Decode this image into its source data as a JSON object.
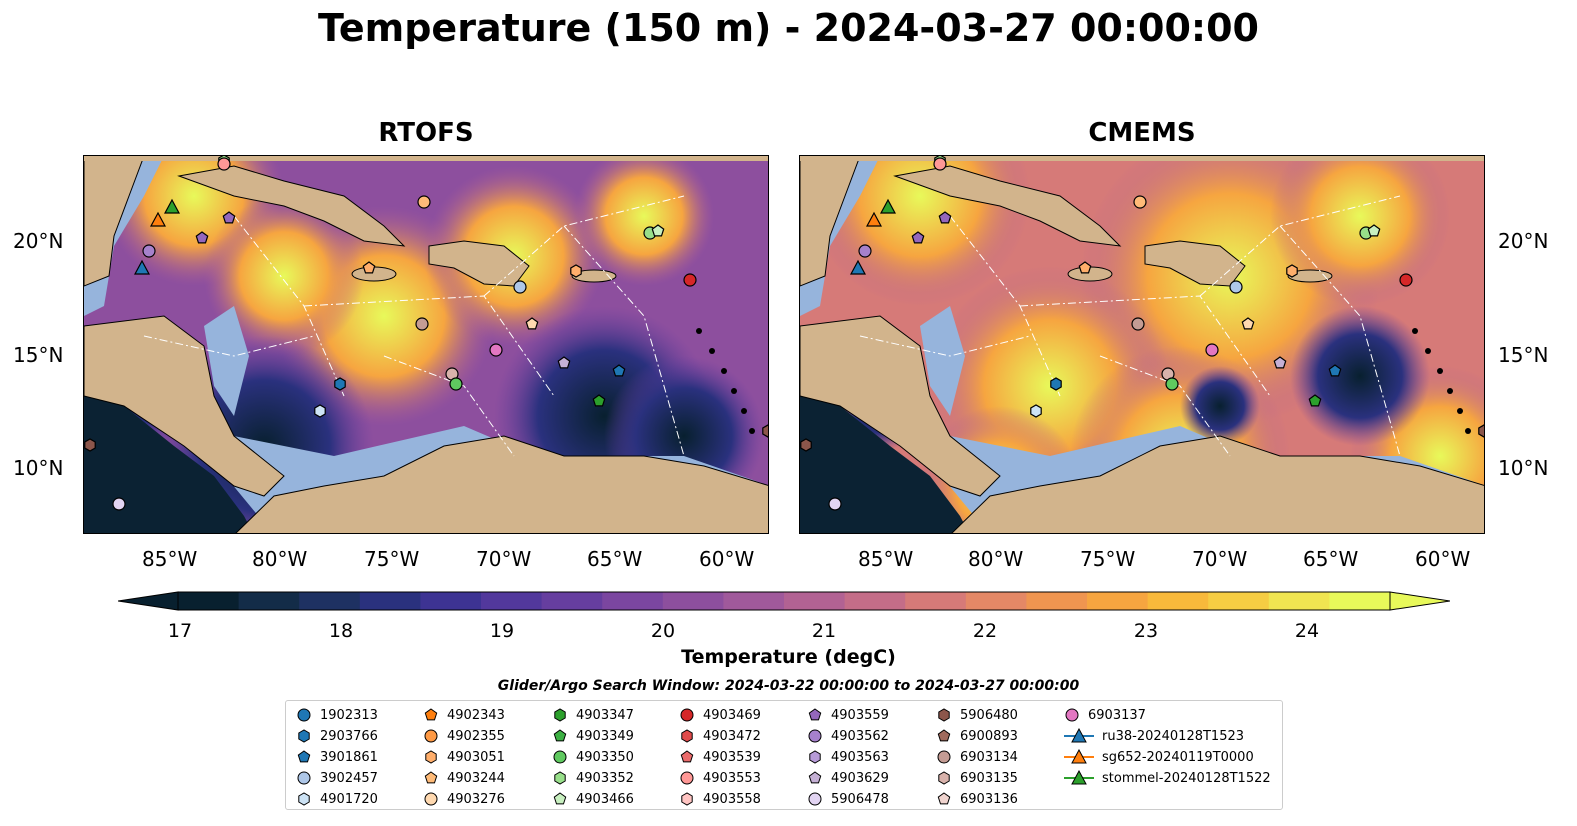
{
  "title": "Temperature (150 m) - 2024-03-27 00:00:00",
  "panels": [
    {
      "name": "RTOFS"
    },
    {
      "name": "CMEMS"
    }
  ],
  "lon_ticks": [
    "85°W",
    "80°W",
    "75°W",
    "70°W",
    "65°W",
    "60°W"
  ],
  "lat_ticks": [
    "20°N",
    "15°N",
    "10°N"
  ],
  "colorbar": {
    "label": "Temperature (degC)",
    "ticks": [
      "17",
      "18",
      "19",
      "20",
      "21",
      "22",
      "23",
      "24"
    ],
    "colors": [
      "#08202f",
      "#132c48",
      "#1e3162",
      "#2a317e",
      "#3d3393",
      "#52389c",
      "#663e9f",
      "#7b46a0",
      "#8d4f9e",
      "#a0599b",
      "#b26293",
      "#c46d88",
      "#d67a78",
      "#e48866",
      "#ef9550",
      "#f6a540",
      "#f8b93b",
      "#f6cd43",
      "#f0e551",
      "#e8f95a"
    ],
    "range": [
      16.75,
      24.5
    ]
  },
  "legend": {
    "title": "Glider/Argo Search Window: 2024-03-22 00:00:00 to 2024-03-27 00:00:00",
    "items": [
      {
        "label": "1902313",
        "marker": "circle",
        "color": "#1f77b4"
      },
      {
        "label": "2903766",
        "marker": "hexagon",
        "color": "#1f77b4"
      },
      {
        "label": "3901861",
        "marker": "pentagon",
        "color": "#1f77b4"
      },
      {
        "label": "3902457",
        "marker": "circle",
        "color": "#aec7e8"
      },
      {
        "label": "4901720",
        "marker": "hexagon",
        "color": "#cde3f5"
      },
      {
        "label": "4902343",
        "marker": "pentagon",
        "color": "#ff7f0e"
      },
      {
        "label": "4902355",
        "marker": "circle",
        "color": "#ff9a45"
      },
      {
        "label": "4903051",
        "marker": "hexagon",
        "color": "#ffae6b"
      },
      {
        "label": "4903244",
        "marker": "pentagon",
        "color": "#ffbb78"
      },
      {
        "label": "4903276",
        "marker": "circle",
        "color": "#ffd9b0"
      },
      {
        "label": "4903347",
        "marker": "hexagon",
        "color": "#2ca02c"
      },
      {
        "label": "4903349",
        "marker": "pentagon",
        "color": "#3cb043"
      },
      {
        "label": "4903350",
        "marker": "circle",
        "color": "#5fc95f"
      },
      {
        "label": "4903352",
        "marker": "hexagon",
        "color": "#98df8a"
      },
      {
        "label": "4903466",
        "marker": "pentagon",
        "color": "#c8f0c0"
      },
      {
        "label": "4903469",
        "marker": "circle",
        "color": "#d62728"
      },
      {
        "label": "4903472",
        "marker": "hexagon",
        "color": "#e04b4b"
      },
      {
        "label": "4903539",
        "marker": "pentagon",
        "color": "#ea6b6b"
      },
      {
        "label": "4903553",
        "marker": "circle",
        "color": "#ff9896"
      },
      {
        "label": "4903558",
        "marker": "hexagon",
        "color": "#ffc4c2"
      },
      {
        "label": "4903559",
        "marker": "pentagon",
        "color": "#9467bd"
      },
      {
        "label": "4903562",
        "marker": "circle",
        "color": "#a681cc"
      },
      {
        "label": "4903563",
        "marker": "hexagon",
        "color": "#b79bd8"
      },
      {
        "label": "4903629",
        "marker": "pentagon",
        "color": "#c5b0d5"
      },
      {
        "label": "5906478",
        "marker": "circle",
        "color": "#e2d4f2"
      },
      {
        "label": "5906480",
        "marker": "hexagon",
        "color": "#8c564b"
      },
      {
        "label": "6900893",
        "marker": "pentagon",
        "color": "#a06a5d"
      },
      {
        "label": "6903134",
        "marker": "circle",
        "color": "#c49c94"
      },
      {
        "label": "6903135",
        "marker": "hexagon",
        "color": "#d8b2ab"
      },
      {
        "label": "6903136",
        "marker": "pentagon",
        "color": "#f0d4cf"
      },
      {
        "label": "6903137",
        "marker": "circle",
        "color": "#e377c2"
      },
      {
        "label": "ru38-20240128T1523",
        "marker": "triangle",
        "color": "#1f77b4"
      },
      {
        "label": "sg652-20240119T0000",
        "marker": "triangle",
        "color": "#ff7f0e"
      },
      {
        "label": "stommel-20240128T1522",
        "marker": "triangle",
        "color": "#2ca02c"
      }
    ]
  },
  "map_style": {
    "land": "#d2b48c",
    "shelf": "#96b4dc",
    "deep": "#0b2233"
  }
}
